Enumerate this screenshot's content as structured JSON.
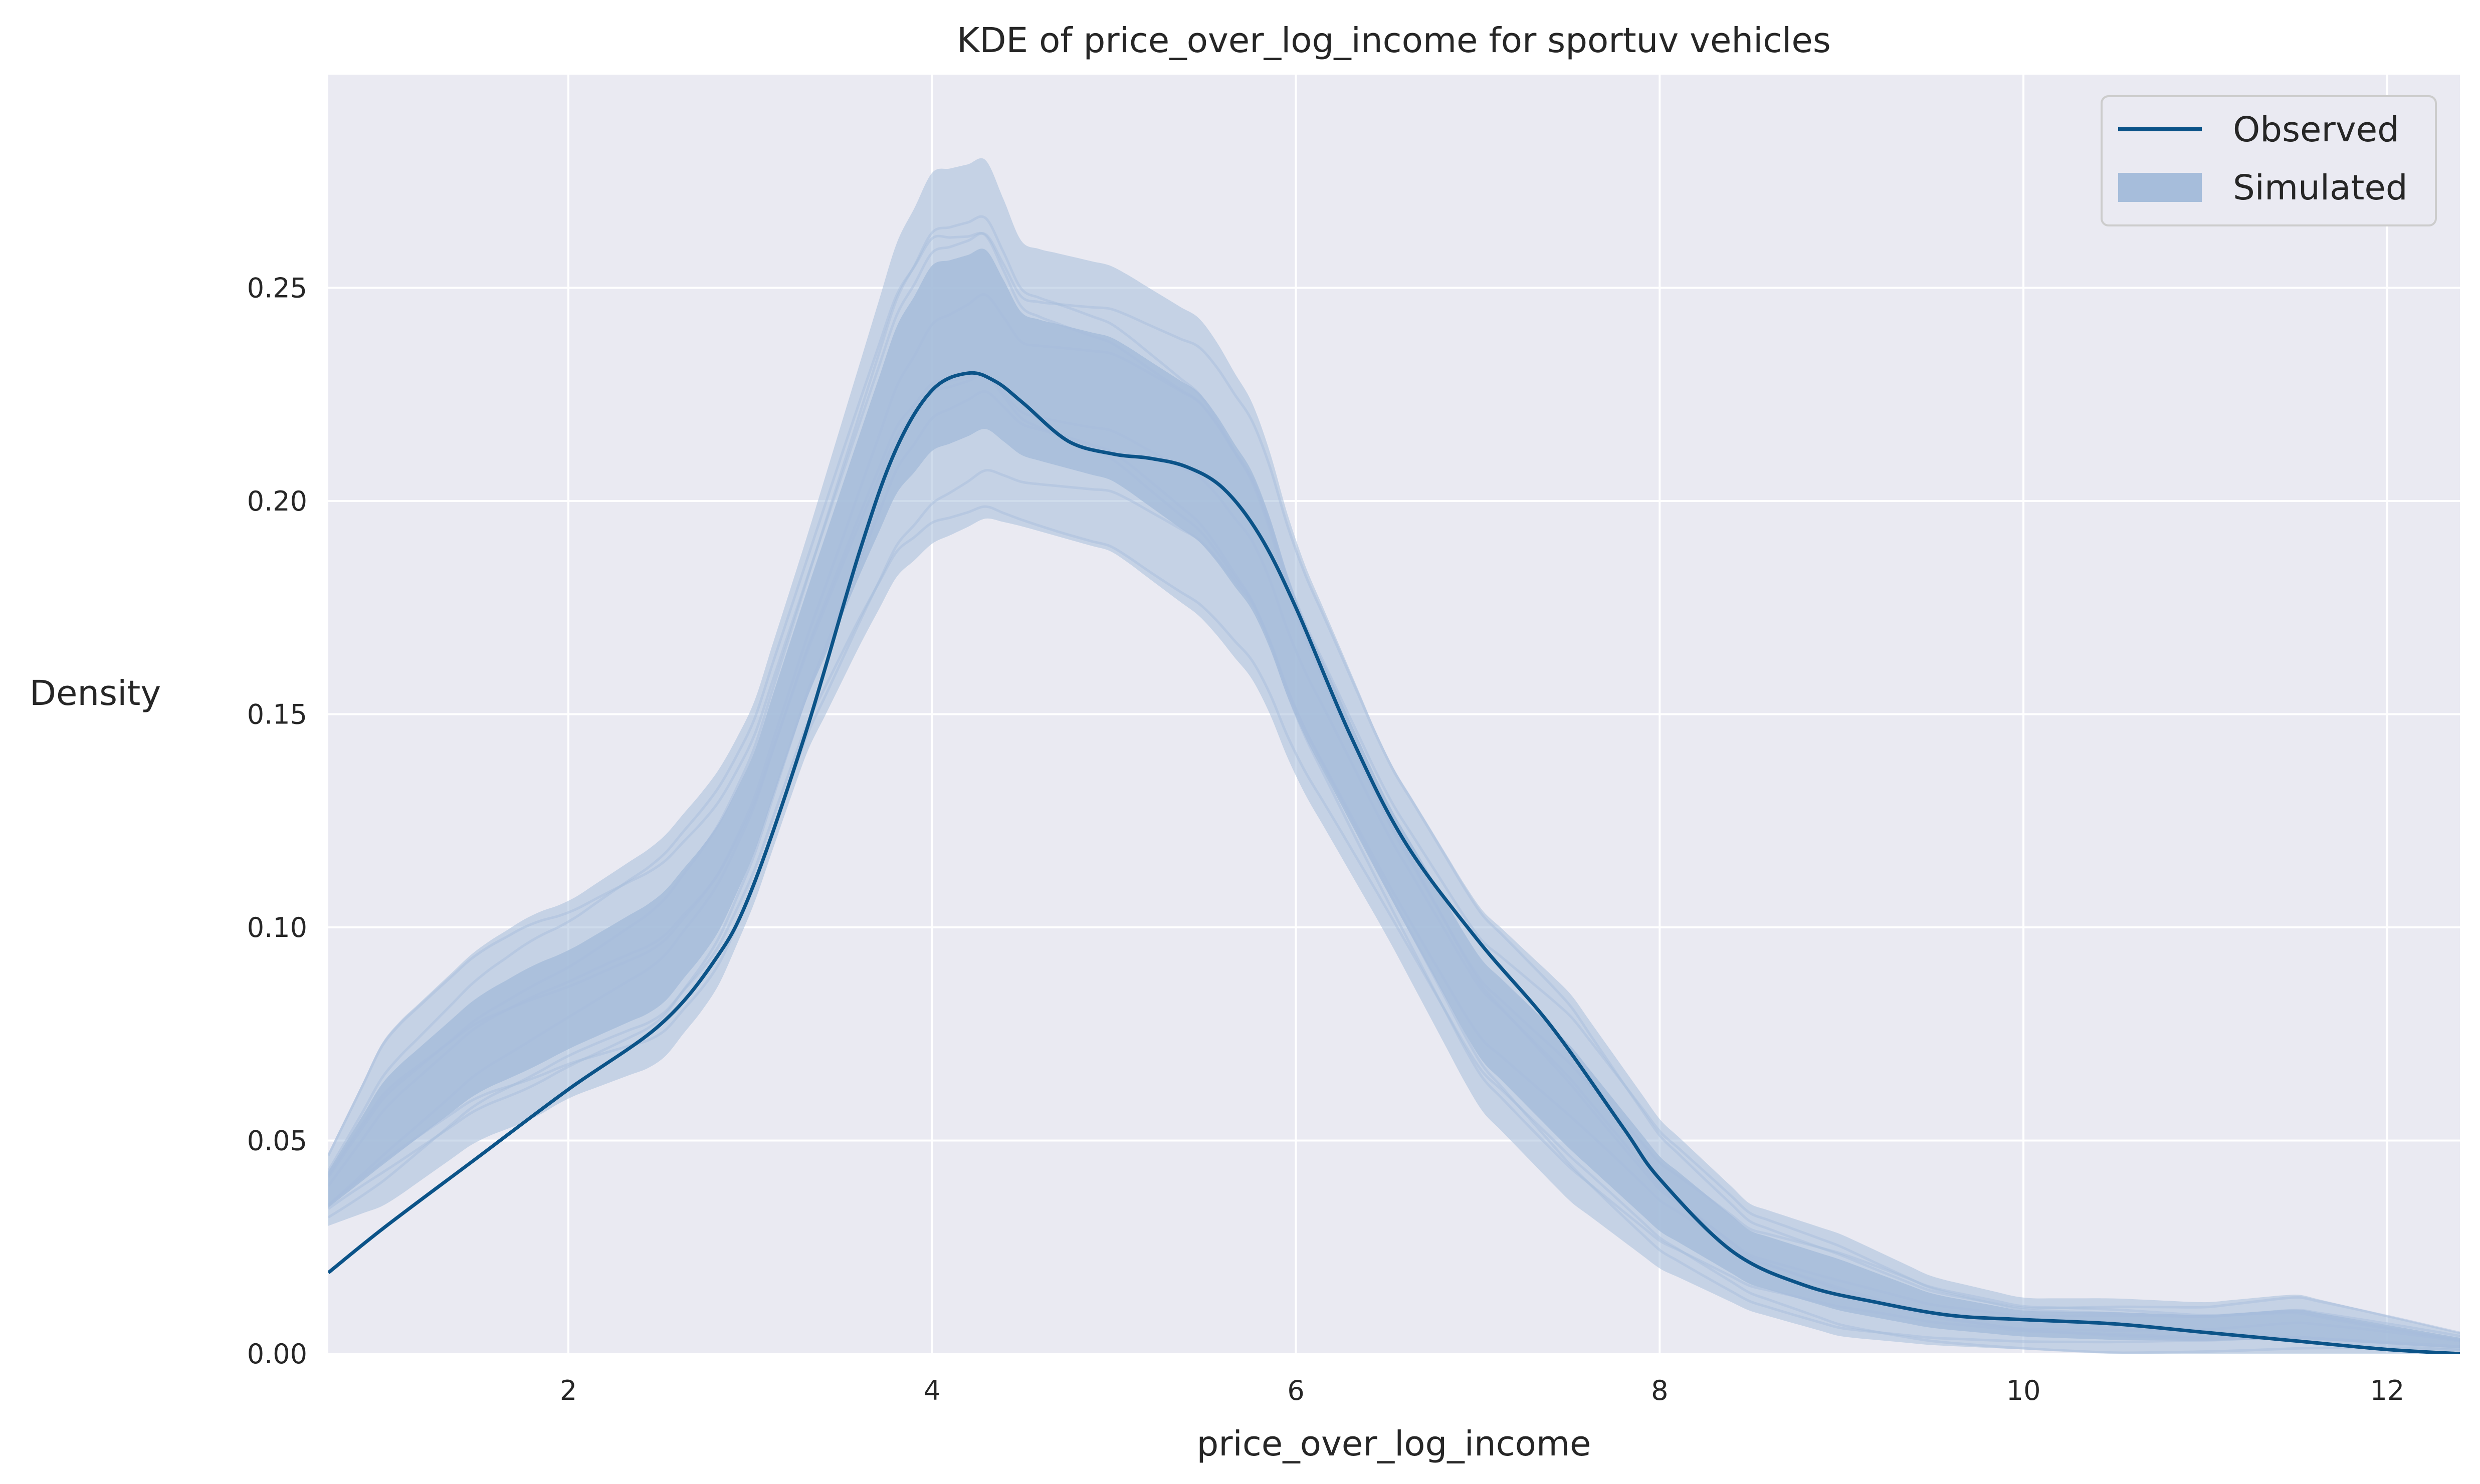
{
  "chart_data": {
    "type": "line",
    "title": "KDE of price_over_log_income for sportuv vehicles",
    "xlabel": "price_over_log_income",
    "ylabel": "Density",
    "xlim": [
      0.68,
      12.4
    ],
    "ylim": [
      0.0,
      0.3
    ],
    "xticks": [
      2,
      4,
      6,
      8,
      10,
      12
    ],
    "xtick_labels": [
      "2",
      "4",
      "6",
      "8",
      "10",
      "12"
    ],
    "yticks": [
      0.0,
      0.05,
      0.1,
      0.15,
      0.2,
      0.25
    ],
    "ytick_labels": [
      "0.00",
      "0.05",
      "0.10",
      "0.15",
      "0.20",
      "0.25"
    ],
    "grid": true,
    "legend_position": "top-right",
    "legend": [
      {
        "label": "Observed",
        "kind": "line",
        "color": "#0b5388"
      },
      {
        "label": "Simulated",
        "kind": "patch",
        "color": "#a6bddb"
      }
    ],
    "colors": {
      "background": "#eaeaf2",
      "grid": "#ffffff",
      "observed": "#0b5388",
      "simulated": "#a6bddb"
    },
    "series": [
      {
        "name": "Observed",
        "x": [
          0.68,
          1.0,
          1.5,
          2.0,
          2.5,
          2.8,
          3.0,
          3.3,
          3.6,
          3.8,
          4.0,
          4.2,
          4.35,
          4.5,
          4.75,
          5.0,
          5.2,
          5.4,
          5.6,
          5.8,
          6.0,
          6.3,
          6.6,
          7.0,
          7.4,
          7.8,
          8.0,
          8.4,
          8.8,
          9.2,
          9.6,
          10.0,
          10.5,
          11.0,
          11.5,
          12.0,
          12.4
        ],
        "y": [
          0.019,
          0.03,
          0.046,
          0.062,
          0.077,
          0.092,
          0.108,
          0.145,
          0.188,
          0.212,
          0.226,
          0.23,
          0.228,
          0.223,
          0.214,
          0.211,
          0.21,
          0.208,
          0.203,
          0.192,
          0.175,
          0.145,
          0.12,
          0.097,
          0.077,
          0.053,
          0.041,
          0.024,
          0.016,
          0.012,
          0.009,
          0.008,
          0.007,
          0.005,
          0.003,
          0.001,
          0.0
        ]
      }
    ],
    "simulated_band": {
      "name": "Simulated",
      "x": [
        0.68,
        1.0,
        1.5,
        1.8,
        2.0,
        2.5,
        2.8,
        3.0,
        3.3,
        3.6,
        3.8,
        4.0,
        4.3,
        4.5,
        5.0,
        5.5,
        5.8,
        6.0,
        6.5,
        7.0,
        7.5,
        8.0,
        8.5,
        9.0,
        9.5,
        10.0,
        10.5,
        11.0,
        11.5,
        12.0,
        12.4
      ],
      "lower": [
        0.03,
        0.035,
        0.05,
        0.055,
        0.06,
        0.068,
        0.084,
        0.103,
        0.14,
        0.166,
        0.182,
        0.19,
        0.196,
        0.194,
        0.188,
        0.172,
        0.156,
        0.135,
        0.098,
        0.058,
        0.036,
        0.02,
        0.01,
        0.004,
        0.002,
        0.001,
        0.0,
        0.0,
        0.0,
        0.0,
        0.0
      ],
      "upper": [
        0.047,
        0.075,
        0.095,
        0.103,
        0.106,
        0.12,
        0.135,
        0.15,
        0.19,
        0.232,
        0.26,
        0.277,
        0.28,
        0.26,
        0.255,
        0.242,
        0.22,
        0.19,
        0.14,
        0.105,
        0.085,
        0.055,
        0.035,
        0.028,
        0.018,
        0.013,
        0.013,
        0.012,
        0.014,
        0.009,
        0.005
      ]
    }
  }
}
